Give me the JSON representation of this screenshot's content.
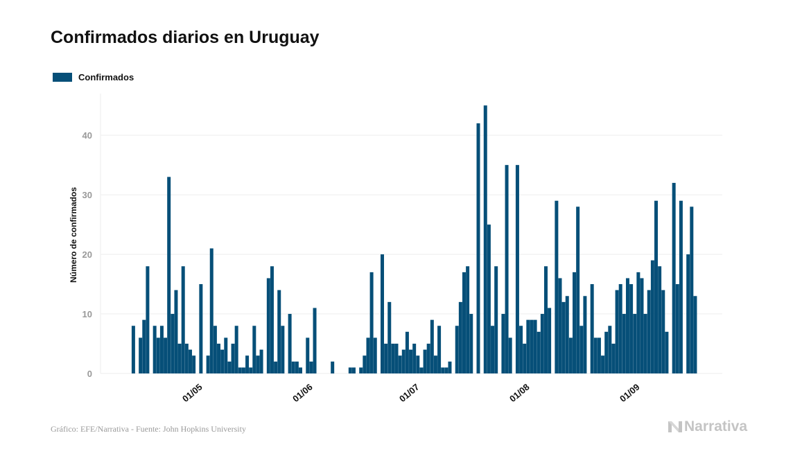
{
  "colors": {
    "bar": "#064f78",
    "grid": "#eeeeee",
    "axis_text": "#999999",
    "ylabel_text": "#111111"
  },
  "chart_data": {
    "type": "bar",
    "title": "Confirmados diarios en Uruguay",
    "ylabel": "Número de confirmados",
    "xlabel": "",
    "legend": {
      "position": "top-left",
      "entries": [
        "Confirmados"
      ]
    },
    "grid": true,
    "ylim": [
      0,
      47
    ],
    "yticks": [
      0,
      10,
      20,
      30,
      40
    ],
    "x_start": "13/04",
    "xtick_labels": [
      "01/05",
      "01/06",
      "01/07",
      "01/08",
      "01/09"
    ],
    "xtick_positions": [
      18,
      49,
      79,
      110,
      141
    ],
    "series": [
      {
        "name": "Confirmados",
        "values": [
          8,
          0,
          6,
          9,
          18,
          0,
          8,
          6,
          8,
          6,
          33,
          10,
          14,
          5,
          18,
          5,
          4,
          3,
          0,
          15,
          0,
          3,
          21,
          8,
          5,
          4,
          6,
          2,
          5,
          8,
          1,
          1,
          3,
          1,
          8,
          3,
          4,
          0,
          16,
          18,
          2,
          14,
          8,
          0,
          10,
          2,
          2,
          1,
          0,
          6,
          2,
          11,
          0,
          0,
          0,
          0,
          2,
          0,
          0,
          0,
          0,
          1,
          1,
          0,
          1,
          3,
          6,
          17,
          6,
          0,
          20,
          5,
          12,
          5,
          5,
          3,
          4,
          7,
          4,
          5,
          3,
          1,
          4,
          5,
          9,
          3,
          8,
          1,
          1,
          2,
          0,
          8,
          12,
          17,
          18,
          10,
          0,
          42,
          0,
          45,
          25,
          8,
          18,
          0,
          10,
          35,
          6,
          0,
          35,
          8,
          5,
          9,
          9,
          9,
          7,
          10,
          18,
          11,
          0,
          29,
          16,
          12,
          13,
          6,
          17,
          28,
          8,
          13,
          0,
          15,
          6,
          6,
          3,
          7,
          8,
          5,
          14,
          15,
          10,
          16,
          15,
          10,
          17,
          16,
          10,
          14,
          19,
          29,
          18,
          14,
          7,
          0,
          32,
          15,
          29,
          0,
          20,
          28,
          13
        ]
      }
    ]
  },
  "credits": "Gráfico: EFE/Narrativa - Fuente: John Hopkins University",
  "brand": {
    "name": "Narrativa",
    "icon": "narrativa-logo-icon"
  }
}
